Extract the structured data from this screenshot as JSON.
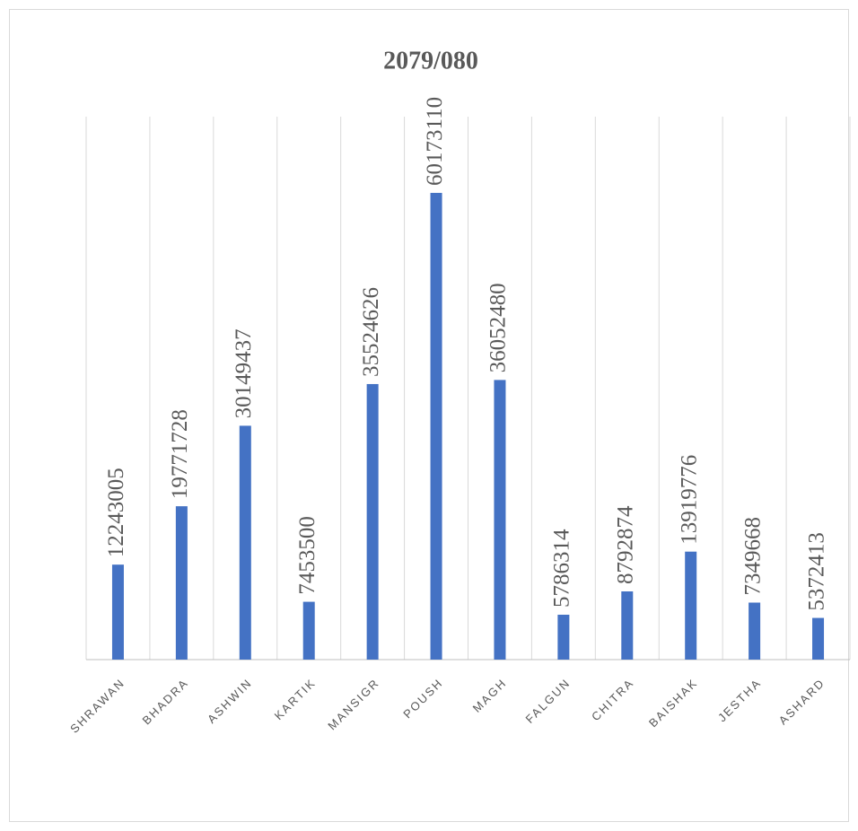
{
  "chart_data": {
    "type": "bar",
    "title": "2079/080",
    "categories": [
      "SHRAWAN",
      "BHADRA",
      "ASHWIN",
      "KARTIK",
      "MANSIGR",
      "POUSH",
      "MAGH",
      "FALGUN",
      "CHITRA",
      "BAISHAK",
      "JESTHA",
      "ASHARD"
    ],
    "values": [
      12243005,
      19771728,
      30149437,
      7453500,
      35524626,
      60173110,
      36052480,
      5786314,
      8792874,
      13919776,
      7349668,
      5372413
    ],
    "color": "#4472c4",
    "ylim": [
      0,
      70000000
    ],
    "grid": true
  }
}
